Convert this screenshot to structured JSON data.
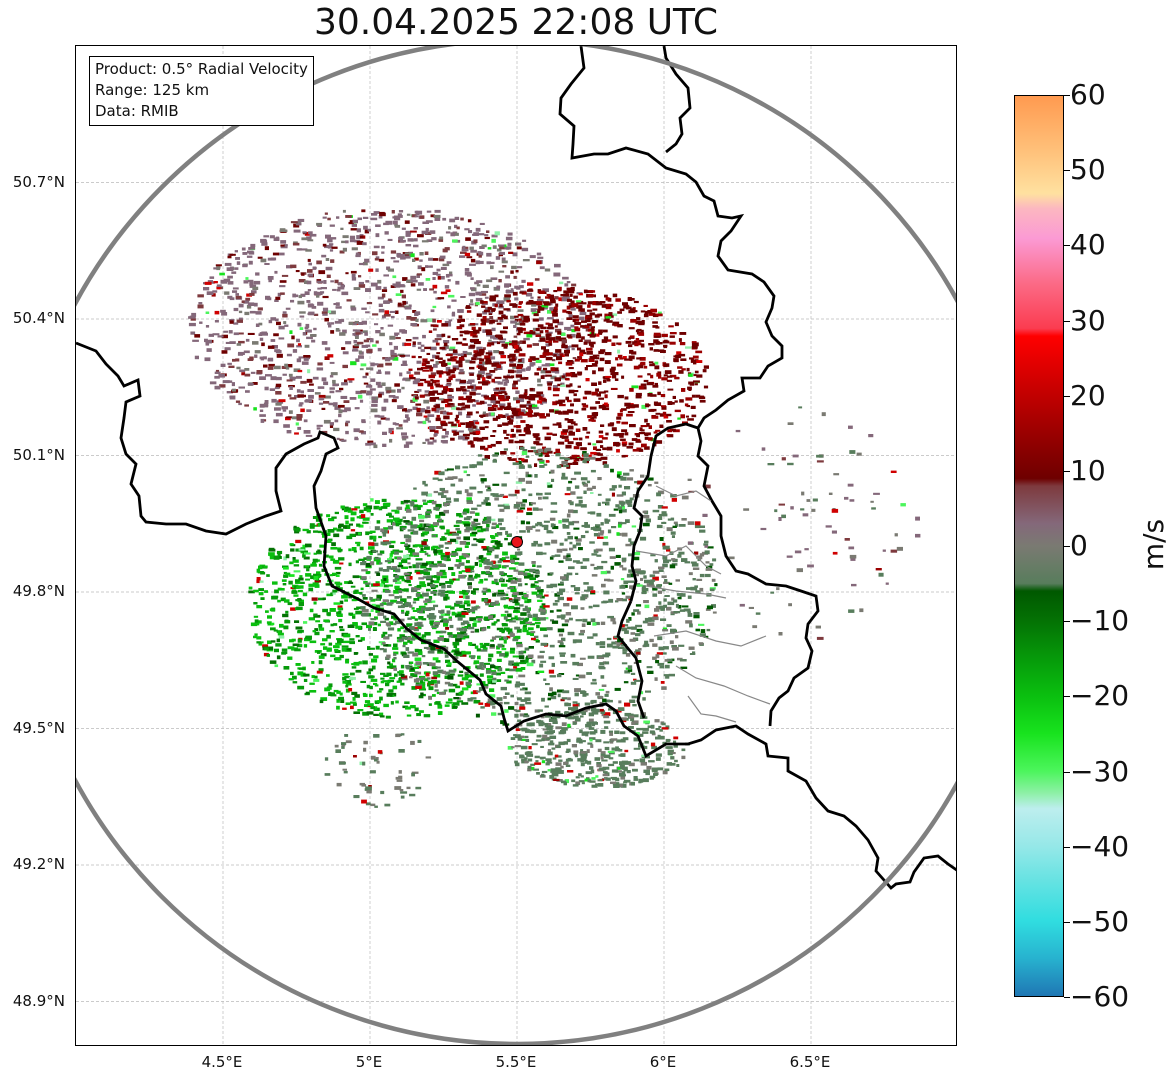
{
  "title": "30.04.2025 22:08 UTC",
  "info_box": {
    "product": "Product: 0.5° Radial Velocity",
    "range": "Range: 125 km",
    "data": "Data: RMIB"
  },
  "map": {
    "lon_range": [
      4.0,
      7.0
    ],
    "lat_range": [
      48.8,
      51.0
    ],
    "radar_site": {
      "lon": 5.5,
      "lat": 49.91,
      "color": "#e8141b"
    },
    "range_ring_km": 125,
    "lat_ticks": [
      {
        "value": 50.7,
        "label": "50.7°N"
      },
      {
        "value": 50.4,
        "label": "50.4°N"
      },
      {
        "value": 50.1,
        "label": "50.1°N"
      },
      {
        "value": 49.8,
        "label": "49.8°N"
      },
      {
        "value": 49.5,
        "label": "49.5°N"
      },
      {
        "value": 49.2,
        "label": "49.2°N"
      },
      {
        "value": 48.9,
        "label": "48.9°N"
      }
    ],
    "lon_ticks": [
      {
        "value": 4.5,
        "label": "4.5°E"
      },
      {
        "value": 5.0,
        "label": "5°E"
      },
      {
        "value": 5.5,
        "label": "5.5°E"
      },
      {
        "value": 6.0,
        "label": "6°E"
      },
      {
        "value": 6.5,
        "label": "6.5°E"
      }
    ],
    "gridlines": true
  },
  "colorbar": {
    "unit": "m/s",
    "range": [
      -60,
      60
    ],
    "ticks": [
      {
        "value": 60,
        "label": "60"
      },
      {
        "value": 50,
        "label": "50"
      },
      {
        "value": 40,
        "label": "40"
      },
      {
        "value": 30,
        "label": "30"
      },
      {
        "value": 20,
        "label": "20"
      },
      {
        "value": 10,
        "label": "10"
      },
      {
        "value": 0,
        "label": "0"
      },
      {
        "value": -10,
        "label": "−10"
      },
      {
        "value": -20,
        "label": "−20"
      },
      {
        "value": -30,
        "label": "−30"
      },
      {
        "value": -40,
        "label": "−40"
      },
      {
        "value": -50,
        "label": "−50"
      },
      {
        "value": -60,
        "label": "−60"
      }
    ],
    "stops": [
      {
        "value": -60,
        "color": "#1f77b4"
      },
      {
        "value": -55,
        "color": "#27b2cf"
      },
      {
        "value": -50,
        "color": "#30dde0"
      },
      {
        "value": -45,
        "color": "#62e2e2"
      },
      {
        "value": -40,
        "color": "#96e8e8"
      },
      {
        "value": -35,
        "color": "#bdeeee"
      },
      {
        "value": -33,
        "color": "#8ff0a8"
      },
      {
        "value": -30,
        "color": "#4cf55c"
      },
      {
        "value": -25,
        "color": "#18e31e"
      },
      {
        "value": -20,
        "color": "#0abf0f"
      },
      {
        "value": -15,
        "color": "#069a0a"
      },
      {
        "value": -10,
        "color": "#047204"
      },
      {
        "value": -6,
        "color": "#005800"
      },
      {
        "value": -5,
        "color": "#587d5c"
      },
      {
        "value": 0,
        "color": "#7a7a72"
      },
      {
        "value": 3,
        "color": "#84687a"
      },
      {
        "value": 8,
        "color": "#7e3a3e"
      },
      {
        "value": 9,
        "color": "#6e0000"
      },
      {
        "value": 15,
        "color": "#9a0000"
      },
      {
        "value": 22,
        "color": "#d00000"
      },
      {
        "value": 28,
        "color": "#ff0000"
      },
      {
        "value": 29,
        "color": "#fb3c50"
      },
      {
        "value": 35,
        "color": "#fb6a86"
      },
      {
        "value": 41,
        "color": "#fb9ad4"
      },
      {
        "value": 45,
        "color": "#fcb7c0"
      },
      {
        "value": 47,
        "color": "#ffe1a0"
      },
      {
        "value": 53,
        "color": "#ffbf78"
      },
      {
        "value": 60,
        "color": "#ff9a50"
      }
    ]
  }
}
